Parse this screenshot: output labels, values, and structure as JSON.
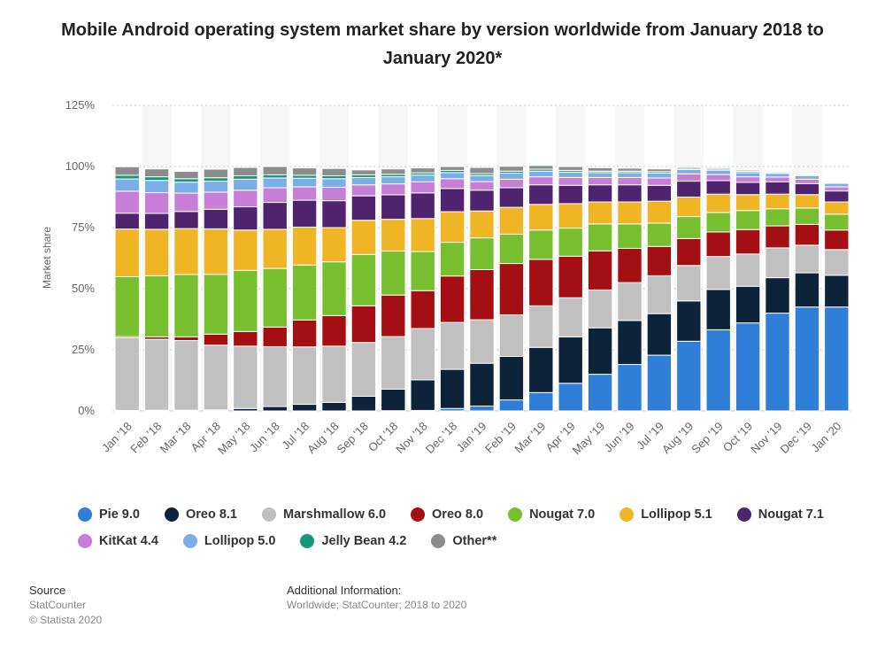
{
  "title": "Mobile Android operating system market share by version worldwide from January 2018 to January 2020*",
  "source": {
    "heading": "Source",
    "provider": "StatCounter",
    "copyright": "© Statista 2020"
  },
  "additional_info": {
    "heading": "Additional Information:",
    "text": "Worldwide; StatCounter; 2018 to 2020"
  },
  "colors": {
    "Pie 9.0": "#2f7ed8",
    "Oreo 8.1": "#0d233a",
    "Marshmallow 6.0": "#c0c0c0",
    "Oreo 8.0": "#a30f12",
    "Nougat 7.0": "#77bf2f",
    "Lollipop 5.1": "#f0b525",
    "Nougat 7.1": "#50236f",
    "KitKat 4.4": "#c77ed6",
    "Lollipop 5.0": "#7aaee7",
    "Jelly Bean 4.2": "#14987a",
    "Other**": "#8c8c8c"
  },
  "chart_data": {
    "type": "bar",
    "stacked": true,
    "ylabel": "Market share",
    "ylim": [
      0,
      125
    ],
    "yticks": [
      "0%",
      "25%",
      "50%",
      "75%",
      "100%",
      "125%"
    ],
    "grid": true,
    "legend_position": "bottom",
    "categories": [
      "Jan '18",
      "Feb '18",
      "Mar '18",
      "Apr '18",
      "May '18",
      "Jun '18",
      "Jul '18",
      "Aug '18",
      "Sep '18",
      "Oct '18",
      "Nov '18",
      "Dec '18",
      "Jan '19",
      "Feb '19",
      "Mar '19",
      "Apr '19",
      "May '19",
      "Jun '19",
      "Jul '19",
      "Aug '19",
      "Sep '19",
      "Oct '19",
      "Nov '19",
      "Dec '19",
      "Jan '20"
    ],
    "series": [
      {
        "name": "Pie 9.0",
        "values": [
          0,
          0,
          0,
          0,
          0,
          0,
          0,
          0,
          0,
          0.1,
          0.2,
          1.0,
          2.0,
          4.5,
          7.5,
          11.3,
          15.0,
          19.0,
          22.8,
          28.5,
          33.2,
          36.0,
          40.0,
          42.5,
          42.5
        ]
      },
      {
        "name": "Oreo 8.1",
        "values": [
          0.2,
          0.3,
          0.3,
          0.4,
          1.0,
          1.8,
          2.7,
          3.5,
          6.0,
          8.8,
          12.5,
          16.0,
          17.5,
          17.8,
          18.5,
          19.0,
          19.0,
          18.0,
          17.0,
          16.5,
          16.5,
          15.0,
          14.5,
          14.0,
          13.0
        ]
      },
      {
        "name": "Marshmallow 6.0",
        "values": [
          29.7,
          29.0,
          28.5,
          26.5,
          25.5,
          24.5,
          23.5,
          23.0,
          22.0,
          21.5,
          21.0,
          19.2,
          17.8,
          17.0,
          17.0,
          16.0,
          15.5,
          15.5,
          15.5,
          14.5,
          13.5,
          13.2,
          12.2,
          11.3,
          10.5
        ]
      },
      {
        "name": "Oreo 8.0",
        "values": [
          0.5,
          1.0,
          1.5,
          4.5,
          6.0,
          8.0,
          11.0,
          12.5,
          15.0,
          17.0,
          15.5,
          19.0,
          20.5,
          21.0,
          19.0,
          17.0,
          16.0,
          14.0,
          12.0,
          11.0,
          10.0,
          10.0,
          9.0,
          8.5,
          8.0
        ]
      },
      {
        "name": "Nougat 7.0",
        "values": [
          24.5,
          25.0,
          25.5,
          24.5,
          25.0,
          24.0,
          22.5,
          22.0,
          21.0,
          18.0,
          16.0,
          13.8,
          13.0,
          12.0,
          12.0,
          11.5,
          11.0,
          10.0,
          9.5,
          9.0,
          8.0,
          7.8,
          7.0,
          6.7,
          6.5
        ]
      },
      {
        "name": "Lollipop 5.1",
        "values": [
          19.5,
          19.0,
          18.8,
          18.6,
          16.5,
          16.0,
          15.5,
          14.0,
          14.0,
          13.0,
          13.5,
          12.5,
          11.0,
          11.0,
          10.5,
          10.0,
          9.0,
          9.0,
          9.0,
          8.0,
          7.5,
          6.5,
          6.0,
          5.5,
          5.0
        ]
      },
      {
        "name": "Nougat 7.1",
        "values": [
          6.5,
          6.5,
          7.0,
          8.0,
          9.5,
          11.0,
          11.0,
          11.0,
          10.0,
          10.0,
          10.5,
          9.5,
          8.5,
          8.0,
          8.0,
          7.5,
          7.0,
          7.0,
          6.5,
          6.5,
          5.5,
          5.0,
          5.0,
          4.5,
          4.5
        ]
      },
      {
        "name": "KitKat 4.4",
        "values": [
          9.0,
          8.5,
          7.5,
          7.0,
          6.8,
          6.0,
          5.5,
          5.5,
          4.5,
          4.5,
          4.5,
          4.0,
          3.5,
          3.5,
          3.3,
          3.2,
          3.0,
          3.0,
          3.0,
          3.0,
          2.5,
          2.3,
          2.0,
          1.8,
          1.7
        ]
      },
      {
        "name": "Lollipop 5.0",
        "values": [
          5.0,
          5.0,
          4.5,
          4.5,
          4.5,
          4.0,
          3.5,
          3.5,
          3.0,
          2.9,
          2.8,
          2.5,
          2.5,
          2.5,
          2.3,
          2.2,
          2.0,
          2.0,
          2.0,
          1.8,
          1.8,
          1.7,
          1.5,
          1.5,
          1.4
        ]
      },
      {
        "name": "Jelly Bean 4.2",
        "values": [
          1.5,
          1.5,
          1.4,
          1.4,
          1.4,
          1.3,
          1.2,
          1.2,
          1.1,
          1.0,
          0.9,
          0.9,
          0.8,
          0.8,
          0.8,
          0.7,
          0.6,
          0.6,
          0.6,
          0.5,
          0.5,
          0.5,
          0.4,
          0.4,
          0.3
        ]
      },
      {
        "name": "Other**",
        "values": [
          3.5,
          3.2,
          3.0,
          3.5,
          3.4,
          3.4,
          3.0,
          3.0,
          2.0,
          2.2,
          2.0,
          1.6,
          2.5,
          2.0,
          1.5,
          1.6,
          1.4,
          1.2,
          1.1,
          0.5,
          0.5,
          0.5,
          0.4,
          0.3,
          0.3
        ]
      }
    ]
  }
}
